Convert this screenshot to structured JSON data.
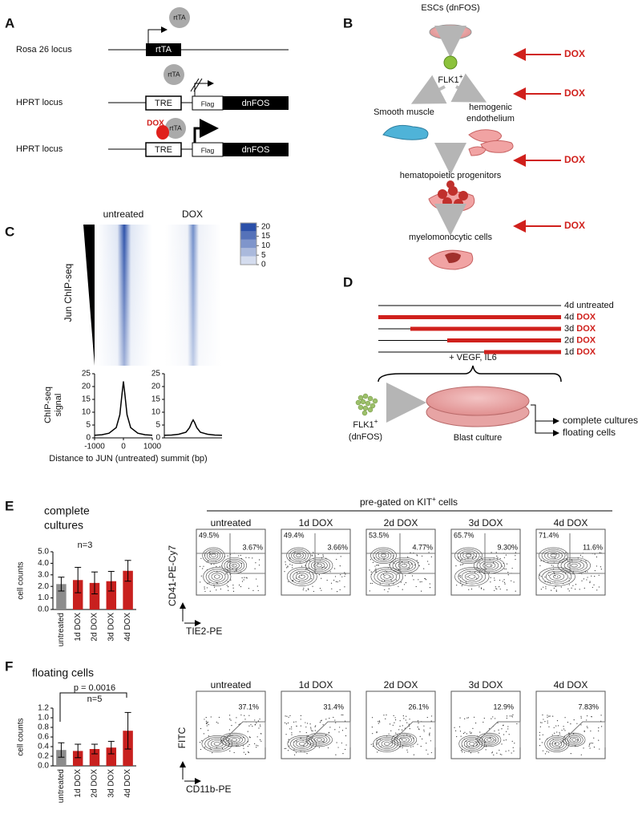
{
  "panel_a": {
    "label": "A",
    "rosa": {
      "locus": "Rosa 26 locus",
      "protein": "rtTA",
      "gene": "rtTA"
    },
    "hprt_off": {
      "locus": "HPRT locus",
      "protein": "rtTA",
      "promoter": "TRE",
      "tag": "Flag",
      "gene": "dnFOS"
    },
    "hprt_on": {
      "locus": "HPRT locus",
      "drug": "DOX",
      "protein": "rtTA",
      "promoter": "TRE",
      "tag": "Flag",
      "gene": "dnFOS"
    }
  },
  "panel_b": {
    "label": "B",
    "esc": "ESCs (dnFOS)",
    "flk1": "FLK1",
    "flk1_sup": "+",
    "smooth_muscle": "Smooth muscle",
    "hemogenic": [
      "hemogenic",
      "endothelium"
    ],
    "progenitors": "hematopoietic progenitors",
    "myelo": "myelomonocytic cells",
    "treatment": "DOX"
  },
  "panel_c": {
    "label": "C",
    "columns": [
      "untreated",
      "DOX"
    ],
    "y_label": "Jun ChIP-seq",
    "profile_y_label": [
      "ChIP-seq",
      "signal"
    ],
    "x_label": "Distance to JUN (untreated) summit (bp)",
    "colorbar": {
      "lim": [
        0,
        22
      ],
      "ticks": [
        20,
        15,
        10,
        5,
        0
      ],
      "color": "#2a4fa8"
    }
  },
  "panel_d": {
    "label": "D",
    "conditions": [
      {
        "days": "4d",
        "treatment": "untreated"
      },
      {
        "days": "4d",
        "treatment": "DOX"
      },
      {
        "days": "3d",
        "treatment": "DOX"
      },
      {
        "days": "2d",
        "treatment": "DOX"
      },
      {
        "days": "1d",
        "treatment": "DOX"
      }
    ],
    "factors": "+ VEGF, IL6",
    "cells": "FLK1",
    "cells_sup": "+",
    "cells_note": "(dnFOS)",
    "culture": "Blast culture",
    "outputs": [
      "complete cultures",
      "floating cells"
    ]
  },
  "panel_e": {
    "label": "E",
    "title": [
      "complete",
      "cultures"
    ],
    "n": "n=3",
    "gate": "pre-gated on KIT",
    "gate_sup": "+",
    "gate_rest": "cells",
    "plots": [
      {
        "title": "untreated",
        "upper_left": "49.5%",
        "upper_right": "3.67%"
      },
      {
        "title": "1d DOX",
        "upper_left": "49.4%",
        "upper_right": "3.66%"
      },
      {
        "title": "2d DOX",
        "upper_left": "53.5%",
        "upper_right": "4.77%"
      },
      {
        "title": "3d DOX",
        "upper_left": "65.7%",
        "upper_right": "9.30%"
      },
      {
        "title": "4d DOX",
        "upper_left": "71.4%",
        "upper_right": "11.6%"
      }
    ],
    "y_axis": "CD41-PE-Cy7",
    "x_axis": "TIE2-PE"
  },
  "panel_f": {
    "label": "F",
    "title": "floating cells",
    "p_value": "p = 0.0016",
    "n": "n=5",
    "plots": [
      {
        "title": "untreated",
        "gate": "37.1%"
      },
      {
        "title": "1d DOX",
        "gate": "31.4%"
      },
      {
        "title": "2d DOX",
        "gate": "26.1%"
      },
      {
        "title": "3d DOX",
        "gate": "12.9%"
      },
      {
        "title": "4d DOX",
        "gate": "7.83%"
      }
    ],
    "y_axis": "FITC",
    "x_axis": "CD11b-PE"
  },
  "chart_data": [
    {
      "type": "line",
      "x": [
        -1000,
        -750,
        -500,
        -250,
        -125,
        -50,
        0,
        50,
        125,
        250,
        500,
        750,
        1000
      ],
      "values": [
        1,
        1.2,
        1.8,
        4,
        9,
        17,
        22,
        17,
        9,
        4,
        1.8,
        1.2,
        1
      ],
      "color": "#000000",
      "xlim": [
        -1000,
        1000
      ],
      "xticks": [
        -1000,
        0,
        1000
      ],
      "ylim": [
        0,
        25
      ],
      "yticks": [
        0,
        5,
        10,
        15,
        20,
        25
      ]
    },
    {
      "type": "line",
      "x": [
        -1000,
        -750,
        -500,
        -250,
        -125,
        -50,
        0,
        50,
        125,
        250,
        500,
        750,
        1000
      ],
      "values": [
        1,
        1.1,
        1.4,
        2.2,
        4,
        6,
        7,
        6,
        4,
        2.2,
        1.4,
        1.1,
        1
      ],
      "color": "#000000",
      "xlim": [
        -1000,
        1000
      ],
      "ylim": [
        0,
        25
      ],
      "yticks": [
        0,
        5,
        10,
        15,
        20,
        25
      ]
    },
    {
      "type": "bar",
      "categories": [
        "untreated",
        "1d DOX",
        "2d DOX",
        "3d DOX",
        "4d DOX"
      ],
      "values": [
        2.2,
        2.55,
        2.3,
        2.45,
        3.35
      ],
      "errors": [
        0.6,
        1.1,
        0.95,
        0.85,
        0.9
      ],
      "colors": [
        "#8c8c8c",
        "#c8201e",
        "#c8201e",
        "#c8201e",
        "#c8201e"
      ],
      "y_label": "cell counts",
      "ylim": [
        0,
        5
      ],
      "yticks": [
        {
          "value": 0,
          "label": "0.0"
        },
        {
          "value": 1,
          "label": "1.0"
        },
        {
          "value": 2,
          "label": "2.0"
        },
        {
          "value": 3,
          "label": "3.0"
        },
        {
          "value": 4,
          "label": "4.0"
        },
        {
          "value": 5,
          "label": "5.0"
        }
      ]
    },
    {
      "type": "bar",
      "categories": [
        "untreated",
        "1d DOX",
        "2d DOX",
        "3d DOX",
        "4d DOX"
      ],
      "values": [
        0.33,
        0.31,
        0.35,
        0.38,
        0.73
      ],
      "errors": [
        0.15,
        0.14,
        0.1,
        0.13,
        0.38
      ],
      "colors": [
        "#8c8c8c",
        "#c8201e",
        "#c8201e",
        "#c8201e",
        "#c8201e"
      ],
      "y_label": "cell counts",
      "ylim": [
        0,
        1.2
      ],
      "yticks": [
        {
          "value": 0,
          "label": "0.0"
        },
        {
          "value": 0.2,
          "label": "0.2"
        },
        {
          "value": 0.4,
          "label": "0.4"
        },
        {
          "value": 0.6,
          "label": "0.6"
        },
        {
          "value": 0.8,
          "label": "0.8"
        },
        {
          "value": 1,
          "label": "1.0"
        },
        {
          "value": 1.2,
          "label": "1.2"
        }
      ]
    }
  ]
}
